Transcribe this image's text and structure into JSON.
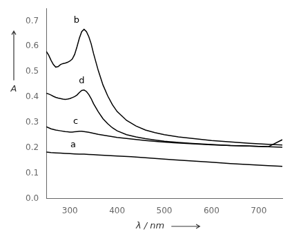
{
  "chart_data": {
    "type": "line",
    "xlabel": "λ / nm",
    "ylabel": "A",
    "xlim": [
      250,
      750
    ],
    "ylim": [
      0.0,
      0.75
    ],
    "xticks": [
      300,
      400,
      500,
      600,
      700
    ],
    "yticks": [
      {
        "value": 0.0,
        "label": "0.0"
      },
      0.1,
      0.2,
      0.3,
      0.4,
      0.5,
      0.6,
      0.7
    ],
    "grid": false,
    "series": [
      {
        "color": "black",
        "x": [
          250,
          260,
          270,
          280,
          290,
          300,
          310,
          320,
          330,
          340,
          350,
          360,
          380,
          400,
          430,
          460,
          490,
          520,
          560,
          600,
          640,
          680,
          720,
          750
        ],
        "values": [
          0.183,
          0.181,
          0.18,
          0.179,
          0.178,
          0.177,
          0.176,
          0.175,
          0.175,
          0.174,
          0.173,
          0.172,
          0.17,
          0.168,
          0.165,
          0.161,
          0.157,
          0.153,
          0.148,
          0.143,
          0.138,
          0.134,
          0.13,
          0.127
        ]
      },
      {
        "color": "black",
        "x": [
          250,
          255,
          260,
          265,
          270,
          275,
          280,
          285,
          290,
          295,
          300,
          305,
          310,
          315,
          320,
          325,
          330,
          335,
          340,
          345,
          350,
          360,
          370,
          380,
          390,
          400,
          420,
          440,
          460,
          480,
          500,
          530,
          560,
          600,
          640,
          680,
          720,
          750
        ],
        "values": [
          0.58,
          0.565,
          0.545,
          0.528,
          0.518,
          0.52,
          0.528,
          0.532,
          0.534,
          0.537,
          0.542,
          0.55,
          0.568,
          0.598,
          0.632,
          0.658,
          0.667,
          0.658,
          0.638,
          0.61,
          0.572,
          0.505,
          0.448,
          0.405,
          0.37,
          0.343,
          0.308,
          0.286,
          0.27,
          0.26,
          0.252,
          0.243,
          0.237,
          0.229,
          0.223,
          0.218,
          0.214,
          0.211
        ]
      },
      {
        "color": "black",
        "x": [
          250,
          260,
          270,
          280,
          290,
          295,
          300,
          305,
          310,
          315,
          320,
          325,
          330,
          340,
          350,
          360,
          380,
          400,
          430,
          460,
          490,
          520,
          560,
          600,
          640,
          680,
          720,
          750
        ],
        "values": [
          0.283,
          0.275,
          0.27,
          0.267,
          0.264,
          0.263,
          0.262,
          0.262,
          0.263,
          0.264,
          0.265,
          0.265,
          0.264,
          0.261,
          0.257,
          0.253,
          0.247,
          0.241,
          0.235,
          0.229,
          0.224,
          0.22,
          0.216,
          0.212,
          0.209,
          0.207,
          0.204,
          0.232
        ]
      },
      {
        "color": "black",
        "x": [
          250,
          255,
          260,
          265,
          270,
          275,
          280,
          285,
          290,
          295,
          300,
          305,
          310,
          315,
          320,
          325,
          330,
          335,
          340,
          345,
          350,
          360,
          370,
          380,
          390,
          400,
          420,
          440,
          460,
          480,
          500,
          530,
          560,
          600,
          640,
          680,
          720,
          750
        ],
        "values": [
          0.415,
          0.412,
          0.408,
          0.403,
          0.399,
          0.396,
          0.394,
          0.392,
          0.391,
          0.392,
          0.394,
          0.398,
          0.402,
          0.408,
          0.418,
          0.426,
          0.428,
          0.422,
          0.41,
          0.394,
          0.374,
          0.342,
          0.315,
          0.295,
          0.279,
          0.267,
          0.252,
          0.243,
          0.236,
          0.231,
          0.226,
          0.221,
          0.217,
          0.213,
          0.209,
          0.207,
          0.204,
          0.202
        ]
      }
    ],
    "annotations": [
      {
        "text": "a",
        "x": 307,
        "y": 0.193,
        "color": "black"
      },
      {
        "text": "b",
        "x": 314,
        "y": 0.685,
        "color": "black"
      },
      {
        "text": "c",
        "x": 312,
        "y": 0.287,
        "color": "black"
      },
      {
        "text": "d",
        "x": 325,
        "y": 0.445,
        "color": "black"
      }
    ]
  }
}
